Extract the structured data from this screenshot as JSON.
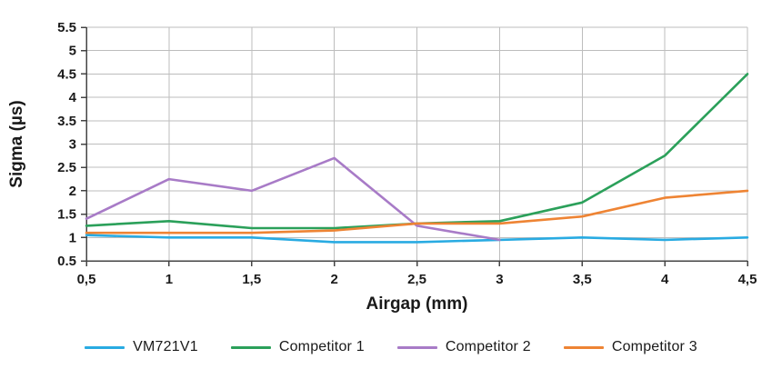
{
  "chart_data": {
    "type": "line",
    "title": "",
    "xlabel": "Airgap (mm)",
    "ylabel": "Sigma (µs)",
    "xlim": [
      0.5,
      4.5
    ],
    "ylim": [
      0.5,
      5.5
    ],
    "grid": true,
    "legend_position": "bottom",
    "x_tick_values": [
      0.5,
      1,
      1.5,
      2,
      2.5,
      3,
      3.5,
      4,
      4.5
    ],
    "x_tick_labels": [
      "0,5",
      "1",
      "1,5",
      "2",
      "2,5",
      "3",
      "3,5",
      "4",
      "4,5"
    ],
    "y_tick_values": [
      0.5,
      1,
      1.5,
      2,
      2.5,
      3,
      3.5,
      4,
      4.5,
      5,
      5.5
    ],
    "y_tick_labels": [
      "0.5",
      "1",
      "1.5",
      "2",
      "2.5",
      "3",
      "3.5",
      "4",
      "4.5",
      "5",
      "5.5"
    ],
    "x": [
      0.5,
      1,
      1.5,
      2,
      2.5,
      3,
      3.5,
      4,
      4.5
    ],
    "series": [
      {
        "name": "VM721V1",
        "color": "#29ABE2",
        "values": [
          1.05,
          1.0,
          1.0,
          0.9,
          0.9,
          0.95,
          1.0,
          0.95,
          1.0
        ]
      },
      {
        "name": "Competitor 1",
        "color": "#2BA05A",
        "values": [
          1.25,
          1.35,
          1.2,
          1.2,
          1.3,
          1.35,
          1.75,
          2.75,
          4.5
        ]
      },
      {
        "name": "Competitor 2",
        "color": "#A87BC7",
        "values": [
          1.4,
          2.25,
          2.0,
          2.7,
          1.25,
          0.95,
          null,
          null,
          null
        ]
      },
      {
        "name": "Competitor 3",
        "color": "#EE8434",
        "values": [
          1.1,
          1.1,
          1.1,
          1.15,
          1.3,
          1.3,
          1.45,
          1.85,
          2.0
        ]
      }
    ],
    "colors": {
      "grid": "#bdbdbd",
      "axis": "#444444",
      "text": "#1a1a1a"
    }
  }
}
